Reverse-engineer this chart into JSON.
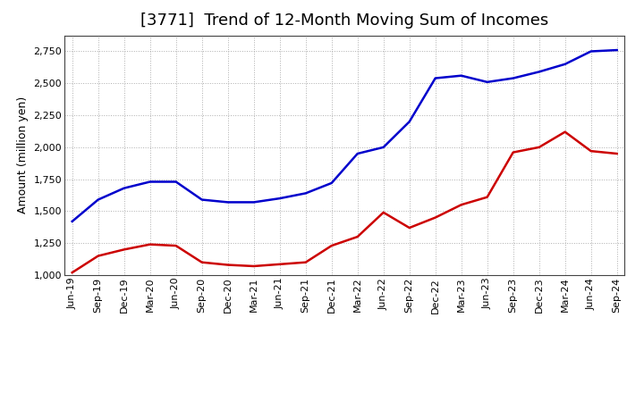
{
  "title": "[3771]  Trend of 12-Month Moving Sum of Incomes",
  "ylabel": "Amount (million yen)",
  "ylim": [
    1000,
    2875
  ],
  "yticks": [
    1000,
    1250,
    1500,
    1750,
    2000,
    2250,
    2500,
    2750
  ],
  "x_labels": [
    "Jun-19",
    "Sep-19",
    "Dec-19",
    "Mar-20",
    "Jun-20",
    "Sep-20",
    "Dec-20",
    "Mar-21",
    "Jun-21",
    "Sep-21",
    "Dec-21",
    "Mar-22",
    "Jun-22",
    "Sep-22",
    "Dec-22",
    "Mar-23",
    "Jun-23",
    "Sep-23",
    "Dec-23",
    "Mar-24",
    "Jun-24",
    "Sep-24"
  ],
  "ordinary_income": [
    1420,
    1590,
    1680,
    1730,
    1730,
    1590,
    1570,
    1570,
    1600,
    1640,
    1720,
    1950,
    2000,
    2200,
    2540,
    2560,
    2510,
    2540,
    2590,
    2650,
    2750,
    2760
  ],
  "net_income": [
    1020,
    1150,
    1200,
    1240,
    1230,
    1100,
    1080,
    1070,
    1085,
    1100,
    1230,
    1300,
    1490,
    1370,
    1450,
    1550,
    1610,
    1960,
    2000,
    2120,
    1970,
    1950
  ],
  "ordinary_color": "#0000CC",
  "net_color": "#CC0000",
  "background_color": "#FFFFFF",
  "plot_bg_color": "#FFFFFF",
  "grid_color": "#999999",
  "line_width": 1.8,
  "title_fontsize": 13,
  "axis_fontsize": 9,
  "tick_fontsize": 8,
  "legend_fontsize": 9
}
